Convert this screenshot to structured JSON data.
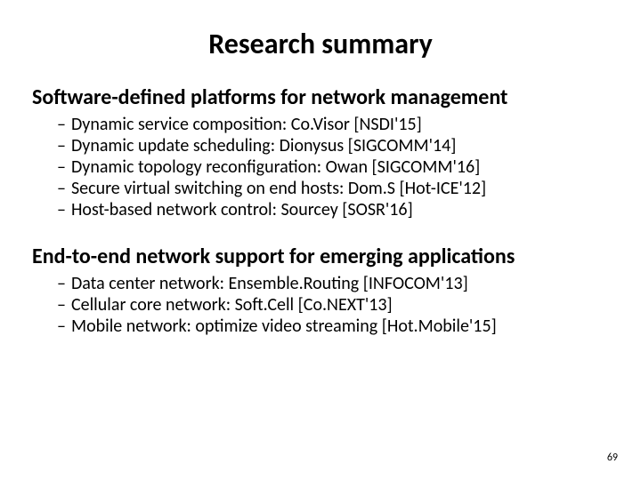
{
  "title": "Research summary",
  "title_fontsize": 32,
  "heading_fontsize": 24,
  "bullet_fontsize": 20,
  "text_color": "#000000",
  "background_color": "#ffffff",
  "sections": [
    {
      "heading": "Software-defined platforms for network management",
      "items": [
        "Dynamic service composition: Co.Visor [NSDI'15]",
        "Dynamic update scheduling: Dionysus [SIGCOMM'14]",
        "Dynamic topology reconfiguration: Owan [SIGCOMM'16]",
        "Secure virtual switching on end hosts: Dom.S [Hot-ICE'12]",
        "Host-based network control: Sourcey [SOSR'16]"
      ]
    },
    {
      "heading": "End-to-end network support for emerging applications",
      "items": [
        "Data center network: Ensemble.Routing [INFOCOM'13]",
        "Cellular core network: Soft.Cell  [Co.NEXT'13]",
        "Mobile network: optimize video streaming [Hot.Mobile'15]"
      ]
    }
  ],
  "page_number": "69",
  "bullet_dash": "–"
}
